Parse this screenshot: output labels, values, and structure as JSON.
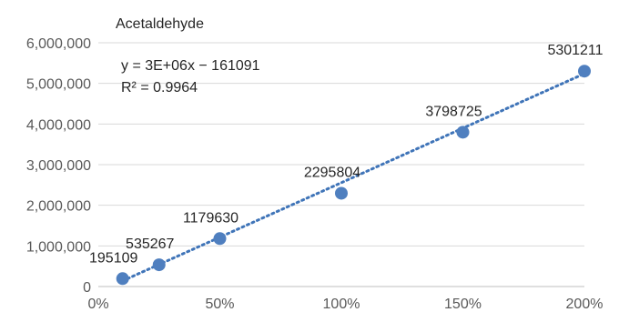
{
  "chart_data": {
    "type": "scatter",
    "title": "Acetaldehyde",
    "xlabel": "",
    "ylabel": "",
    "x_ticks": [
      "0%",
      "50%",
      "100%",
      "150%",
      "200%"
    ],
    "y_ticks": [
      "0",
      "1,000,000",
      "2,000,000",
      "3,000,000",
      "4,000,000",
      "5,000,000",
      "6,000,000"
    ],
    "xlim": [
      0,
      2
    ],
    "ylim": [
      0,
      6000000
    ],
    "grid": "horizontal",
    "legend": "none",
    "series": [
      {
        "points": [
          {
            "x": 0.1,
            "y": 195109,
            "label": "195109"
          },
          {
            "x": 0.25,
            "y": 535267,
            "label": "535267"
          },
          {
            "x": 0.5,
            "y": 1179630,
            "label": "1179630"
          },
          {
            "x": 1.0,
            "y": 2295804,
            "label": "2295804"
          },
          {
            "x": 1.5,
            "y": 3798725,
            "label": "3798725"
          },
          {
            "x": 2.0,
            "y": 5301211,
            "label": "5301211"
          }
        ],
        "color": "#4f7fbf"
      }
    ],
    "trendline": {
      "type": "linear",
      "color": "#3f74b8",
      "x_range": [
        0.1,
        2.0
      ],
      "y_range": [
        140000,
        5240000
      ],
      "equation": "y = 3E+06x − 161091",
      "r_squared": "R² = 0.9964"
    }
  }
}
